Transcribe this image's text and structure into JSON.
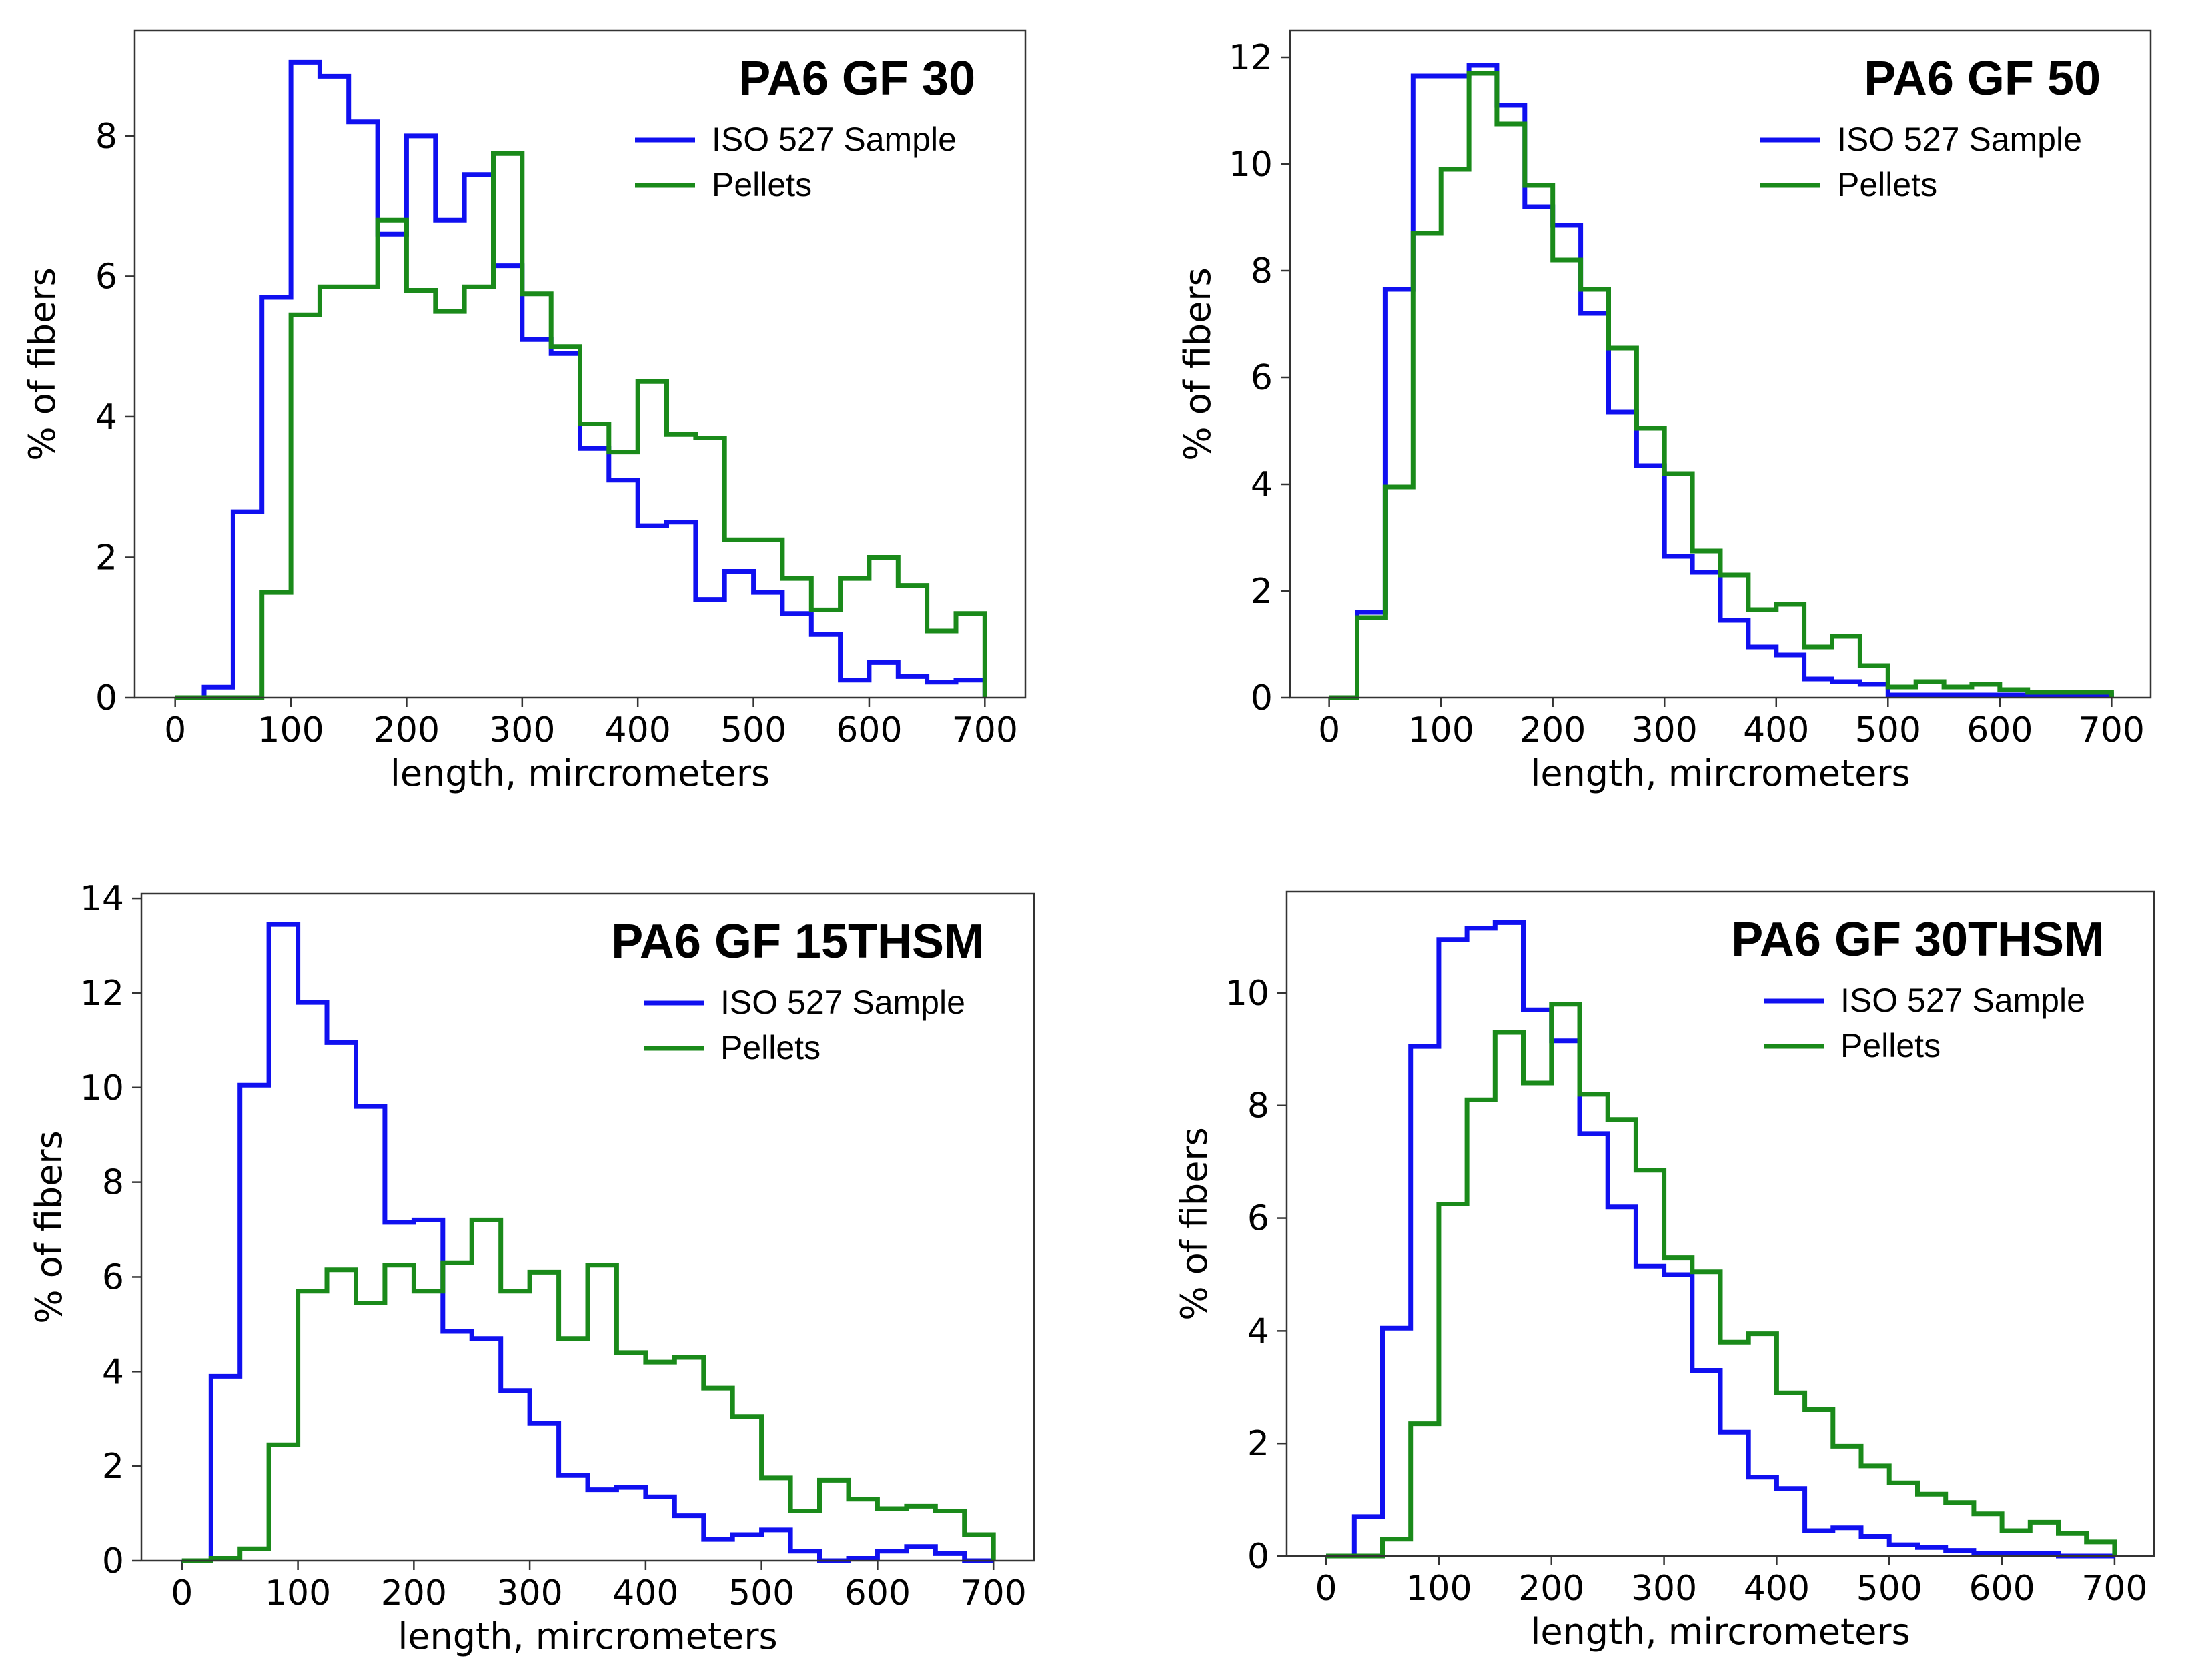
{
  "chart_data": [
    {
      "type": "histogram",
      "title": "PA6 GF 30",
      "xlabel": "length, mircrometers",
      "ylabel": "% of fibers",
      "xlim": [
        -35,
        735
      ],
      "ylim": [
        0,
        9.5
      ],
      "xticks": [
        0,
        100,
        200,
        300,
        400,
        500,
        600,
        700
      ],
      "yticks": [
        0,
        2,
        4,
        6,
        8
      ],
      "bin_edges": [
        0,
        25,
        50,
        75,
        100,
        125,
        150,
        175,
        200,
        225,
        250,
        275,
        300,
        325,
        350,
        375,
        400,
        425,
        450,
        475,
        500,
        525,
        550,
        575,
        600,
        625,
        650,
        675,
        700
      ],
      "series": [
        {
          "name": "ISO 527 Sample",
          "color": "#1010f0",
          "values": [
            0,
            0.15,
            2.65,
            5.7,
            9.05,
            8.85,
            8.2,
            6.6,
            8.0,
            6.8,
            7.45,
            6.15,
            5.1,
            4.9,
            3.55,
            3.1,
            2.45,
            2.5,
            1.4,
            1.8,
            1.5,
            1.2,
            0.9,
            0.25,
            0.5,
            0.3,
            0.22,
            0.25
          ]
        },
        {
          "name": "Pellets",
          "color": "#1a8a1a",
          "values": [
            0,
            0,
            0,
            1.5,
            5.45,
            5.85,
            5.85,
            6.8,
            5.8,
            5.5,
            5.85,
            7.75,
            5.75,
            5.0,
            3.9,
            3.5,
            4.5,
            3.75,
            3.7,
            2.25,
            2.25,
            1.7,
            1.25,
            1.7,
            2.0,
            1.6,
            0.95,
            1.2
          ]
        }
      ]
    },
    {
      "type": "histogram",
      "title": "PA6 GF 50",
      "xlabel": "length, mircrometers",
      "ylabel": "% of fibers",
      "xlim": [
        -35,
        735
      ],
      "ylim": [
        0,
        12.5
      ],
      "xticks": [
        0,
        100,
        200,
        300,
        400,
        500,
        600,
        700
      ],
      "yticks": [
        0,
        2,
        4,
        6,
        8,
        10,
        12
      ],
      "bin_edges": [
        0,
        25,
        50,
        75,
        100,
        125,
        150,
        175,
        200,
        225,
        250,
        275,
        300,
        325,
        350,
        375,
        400,
        425,
        450,
        475,
        500,
        525,
        550,
        575,
        600,
        625,
        650,
        675,
        700
      ],
      "series": [
        {
          "name": "ISO 527 Sample",
          "color": "#1010f0",
          "values": [
            0,
            1.6,
            7.65,
            11.65,
            11.65,
            11.85,
            11.1,
            9.2,
            8.85,
            7.2,
            5.35,
            4.35,
            2.65,
            2.35,
            1.45,
            0.95,
            0.8,
            0.35,
            0.3,
            0.25,
            0.05,
            0.05,
            0.05,
            0.05,
            0.05,
            0.05,
            0.05,
            0.05
          ]
        },
        {
          "name": "Pellets",
          "color": "#1a8a1a",
          "values": [
            0,
            1.5,
            3.95,
            8.7,
            9.9,
            11.7,
            10.75,
            9.6,
            8.2,
            7.65,
            6.55,
            5.05,
            4.2,
            2.75,
            2.3,
            1.65,
            1.75,
            0.95,
            1.15,
            0.6,
            0.2,
            0.3,
            0.2,
            0.25,
            0.15,
            0.1,
            0.1,
            0.1
          ]
        }
      ]
    },
    {
      "type": "histogram",
      "title": "PA6 GF 15THSM",
      "xlabel": "length, mircrometers",
      "ylabel": "% of fibers",
      "xlim": [
        -35,
        735
      ],
      "ylim": [
        0,
        14.1
      ],
      "xticks": [
        0,
        100,
        200,
        300,
        400,
        500,
        600,
        700
      ],
      "yticks": [
        0,
        2,
        4,
        6,
        8,
        10,
        12,
        14
      ],
      "bin_edges": [
        0,
        25,
        50,
        75,
        100,
        125,
        150,
        175,
        200,
        225,
        250,
        275,
        300,
        325,
        350,
        375,
        400,
        425,
        450,
        475,
        500,
        525,
        550,
        575,
        600,
        625,
        650,
        675,
        700
      ],
      "series": [
        {
          "name": "ISO 527 Sample",
          "color": "#1010f0",
          "values": [
            0,
            3.9,
            10.05,
            13.45,
            11.8,
            10.95,
            9.6,
            7.15,
            7.2,
            4.85,
            4.7,
            3.6,
            2.9,
            1.8,
            1.5,
            1.55,
            1.35,
            0.95,
            0.45,
            0.55,
            0.65,
            0.2,
            0,
            0.05,
            0.2,
            0.3,
            0.15,
            0
          ]
        },
        {
          "name": "Pellets",
          "color": "#1a8a1a",
          "values": [
            0,
            0.05,
            0.25,
            2.45,
            5.7,
            6.15,
            5.45,
            6.25,
            5.7,
            6.3,
            7.2,
            5.7,
            6.1,
            4.7,
            6.25,
            4.4,
            4.2,
            4.3,
            3.65,
            3.05,
            1.75,
            1.05,
            1.7,
            1.3,
            1.1,
            1.15,
            1.05,
            0.55
          ]
        }
      ]
    },
    {
      "type": "histogram",
      "title": "PA6 GF 30THSM",
      "xlabel": "length, mircrometers",
      "ylabel": "% of fibers",
      "xlim": [
        -35,
        735
      ],
      "ylim": [
        0,
        11.8
      ],
      "xticks": [
        0,
        100,
        200,
        300,
        400,
        500,
        600,
        700
      ],
      "yticks": [
        0,
        2,
        4,
        6,
        8,
        10
      ],
      "bin_edges": [
        0,
        25,
        50,
        75,
        100,
        125,
        150,
        175,
        200,
        225,
        250,
        275,
        300,
        325,
        350,
        375,
        400,
        425,
        450,
        475,
        500,
        525,
        550,
        575,
        600,
        625,
        650,
        675,
        700
      ],
      "series": [
        {
          "name": "ISO 527 Sample",
          "color": "#1010f0",
          "values": [
            0,
            0.7,
            4.05,
            9.05,
            10.95,
            11.15,
            11.25,
            9.7,
            9.15,
            7.5,
            6.2,
            5.15,
            5.0,
            3.3,
            2.2,
            1.4,
            1.2,
            0.45,
            0.5,
            0.35,
            0.2,
            0.15,
            0.1,
            0.05,
            0.05,
            0.05,
            0,
            0
          ]
        },
        {
          "name": "Pellets",
          "color": "#1a8a1a",
          "values": [
            0,
            0,
            0.3,
            2.35,
            6.25,
            8.1,
            9.3,
            8.4,
            9.8,
            8.2,
            7.75,
            6.85,
            5.3,
            5.05,
            3.8,
            3.95,
            2.9,
            2.6,
            1.95,
            1.6,
            1.3,
            1.1,
            0.95,
            0.75,
            0.45,
            0.6,
            0.4,
            0.25
          ]
        }
      ]
    }
  ]
}
